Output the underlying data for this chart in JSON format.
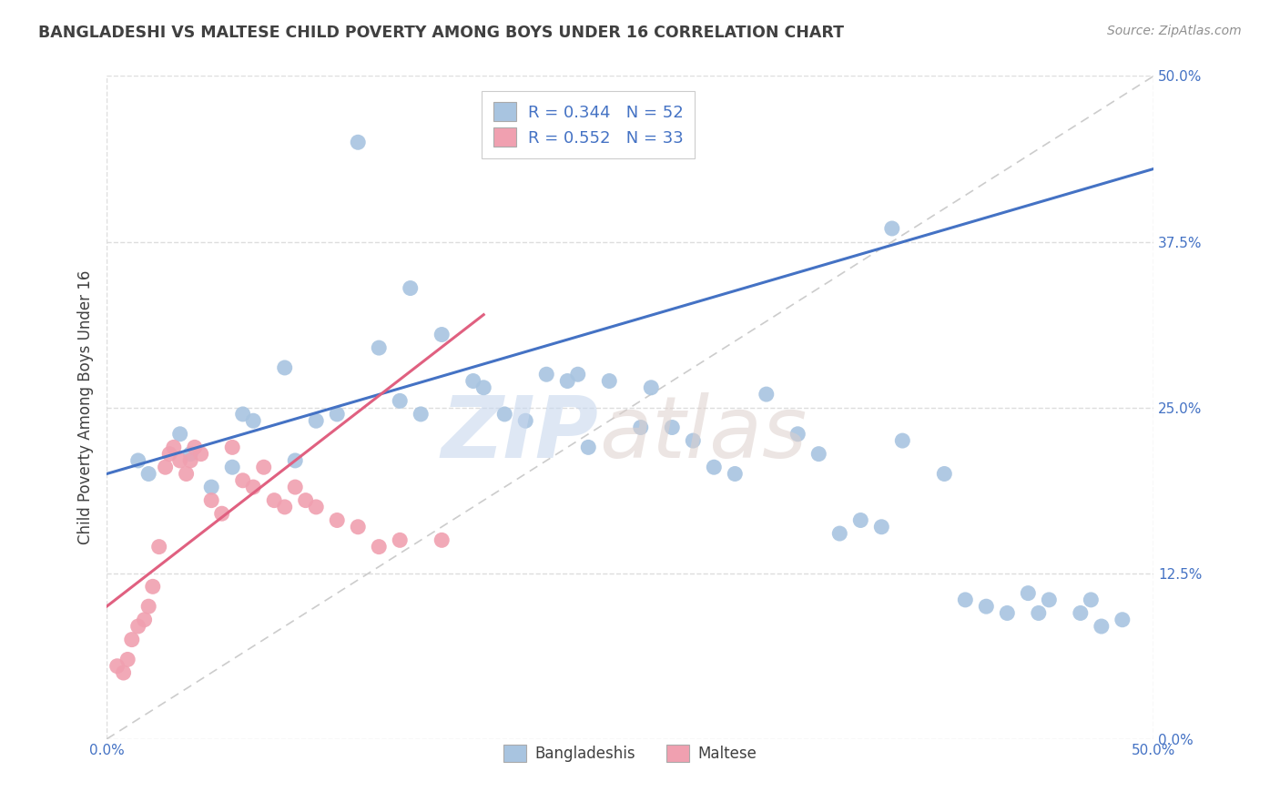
{
  "title": "BANGLADESHI VS MALTESE CHILD POVERTY AMONG BOYS UNDER 16 CORRELATION CHART",
  "source": "Source: ZipAtlas.com",
  "ylabel": "Child Poverty Among Boys Under 16",
  "ytick_values": [
    0.0,
    12.5,
    25.0,
    37.5,
    50.0
  ],
  "xlim": [
    0.0,
    50.0
  ],
  "ylim": [
    0.0,
    50.0
  ],
  "bangladeshi_R": 0.344,
  "bangladeshi_N": 52,
  "maltese_R": 0.552,
  "maltese_N": 33,
  "bangladeshi_color": "#a8c4e0",
  "maltese_color": "#f0a0b0",
  "bangladeshi_line_color": "#4472c4",
  "maltese_line_color": "#e06080",
  "trendline_dashed_color": "#cccccc",
  "legend_text_color": "#4472c4",
  "title_color": "#404040",
  "source_color": "#909090",
  "background_color": "#ffffff",
  "grid_color": "#dddddd",
  "bangladeshi_x": [
    1.5,
    2.0,
    3.5,
    4.0,
    5.0,
    6.0,
    6.5,
    7.0,
    8.5,
    9.0,
    10.0,
    11.0,
    12.0,
    13.0,
    14.0,
    14.5,
    15.0,
    16.0,
    17.5,
    18.0,
    19.0,
    20.0,
    21.0,
    22.0,
    22.5,
    23.0,
    24.0,
    25.5,
    26.0,
    27.0,
    28.0,
    29.0,
    30.0,
    31.5,
    33.0,
    34.0,
    35.0,
    36.0,
    37.0,
    37.5,
    38.0,
    40.0,
    41.0,
    42.0,
    43.0,
    44.0,
    44.5,
    45.0,
    46.5,
    47.0,
    47.5,
    48.5
  ],
  "bangladeshi_y": [
    21.0,
    20.0,
    23.0,
    21.5,
    19.0,
    20.5,
    24.5,
    24.0,
    28.0,
    21.0,
    24.0,
    24.5,
    45.0,
    29.5,
    25.5,
    34.0,
    24.5,
    30.5,
    27.0,
    26.5,
    24.5,
    24.0,
    27.5,
    27.0,
    27.5,
    22.0,
    27.0,
    23.5,
    26.5,
    23.5,
    22.5,
    20.5,
    20.0,
    26.0,
    23.0,
    21.5,
    15.5,
    16.5,
    16.0,
    38.5,
    22.5,
    20.0,
    10.5,
    10.0,
    9.5,
    11.0,
    9.5,
    10.5,
    9.5,
    10.5,
    8.5,
    9.0
  ],
  "maltese_x": [
    0.5,
    0.8,
    1.0,
    1.2,
    1.5,
    1.8,
    2.0,
    2.2,
    2.5,
    2.8,
    3.0,
    3.2,
    3.5,
    3.8,
    4.0,
    4.2,
    4.5,
    5.0,
    5.5,
    6.0,
    6.5,
    7.0,
    7.5,
    8.0,
    8.5,
    9.0,
    9.5,
    10.0,
    11.0,
    12.0,
    13.0,
    14.0,
    16.0
  ],
  "maltese_y": [
    5.5,
    5.0,
    6.0,
    7.5,
    8.5,
    9.0,
    10.0,
    11.5,
    14.5,
    20.5,
    21.5,
    22.0,
    21.0,
    20.0,
    21.0,
    22.0,
    21.5,
    18.0,
    17.0,
    22.0,
    19.5,
    19.0,
    20.5,
    18.0,
    17.5,
    19.0,
    18.0,
    17.5,
    16.5,
    16.0,
    14.5,
    15.0,
    15.0
  ]
}
